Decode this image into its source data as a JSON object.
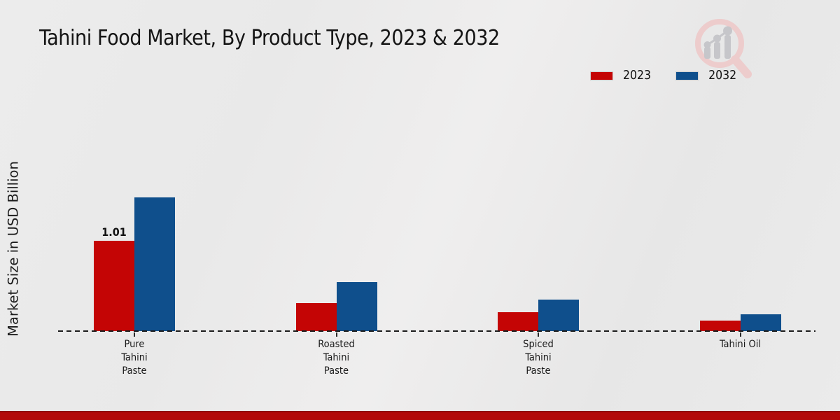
{
  "chart_data": {
    "type": "bar",
    "title": "Tahini Food Market, By Product Type, 2023 & 2032",
    "xlabel": "",
    "ylabel": "Market Size in USD Billion",
    "categories": [
      "Pure Tahini Paste",
      "Roasted Tahini Paste",
      "Spiced Tahini Paste",
      "Tahini Oil"
    ],
    "categories_display": [
      "Pure\nTahini\nPaste",
      "Roasted\nTahini\nPaste",
      "Spiced\nTahini\nPaste",
      "Tahini Oil"
    ],
    "series": [
      {
        "name": "2023",
        "color": "#c40505",
        "values": [
          1.01,
          0.31,
          0.21,
          0.12
        ],
        "data_labels": [
          "1.01",
          null,
          null,
          null
        ]
      },
      {
        "name": "2032",
        "color": "#0f4f8c",
        "values": [
          1.49,
          0.55,
          0.35,
          0.19
        ],
        "data_labels": [
          null,
          null,
          null,
          null
        ]
      }
    ],
    "ylim": [
      0,
      1.6
    ],
    "grid": false,
    "y_ticks_visible": false,
    "legend_position": "top-right",
    "baseline_style": "dashed"
  },
  "footer": {
    "accent_bar_color": "#b20909",
    "accent_bar_edge_color": "#8f0a0a"
  },
  "watermark": {
    "icon": "magnifier-bar-chart-logo",
    "glass_color": "#edcccc",
    "chart_color": "#c6c6ca"
  }
}
